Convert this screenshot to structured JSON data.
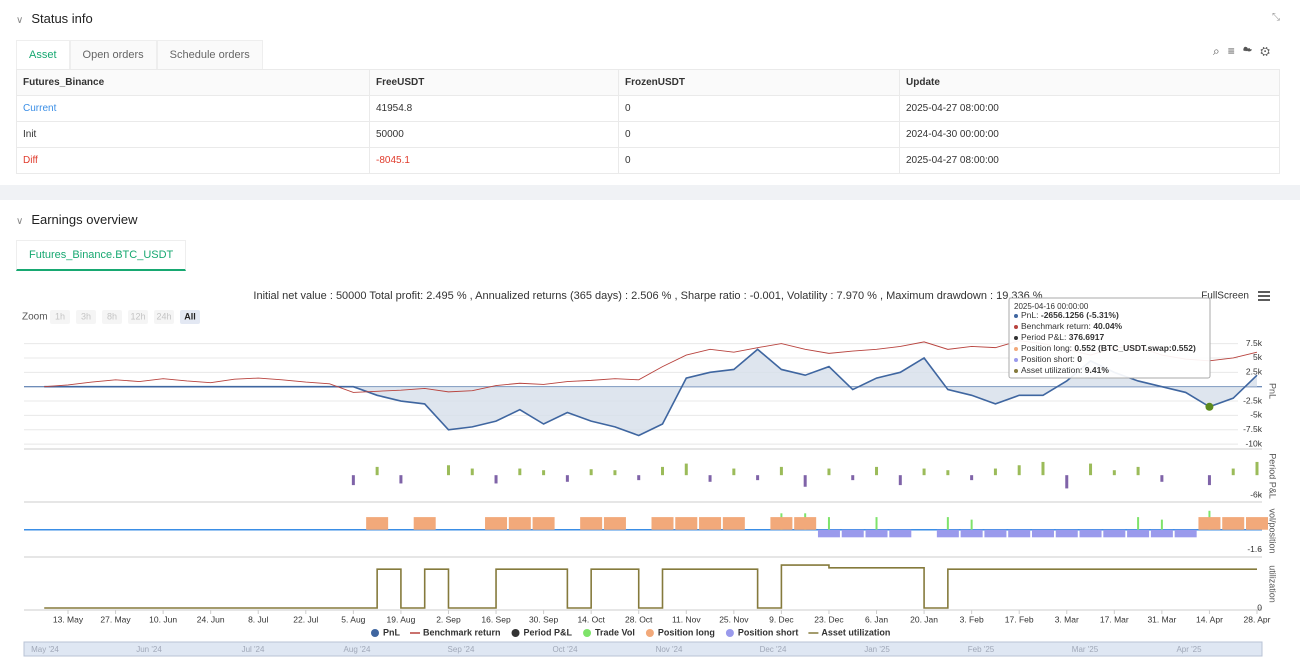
{
  "status": {
    "title": "Status info",
    "tabs": [
      "Asset",
      "Open orders",
      "Schedule orders"
    ],
    "table": {
      "columns": [
        "Futures_Binance",
        "FreeUSDT",
        "FrozenUSDT",
        "Update"
      ],
      "rows": [
        [
          "Current",
          "41954.8",
          "0",
          "2025-04-27 08:00:00"
        ],
        [
          "Init",
          "50000",
          "0",
          "2024-04-30 00:00:00"
        ],
        [
          "Diff",
          "-8045.1",
          "0",
          "2025-04-27 08:00:00"
        ]
      ]
    }
  },
  "earnings": {
    "title": "Earnings overview",
    "tab": "Futures_Binance.BTC_USDT",
    "summary": "Initial net value : 50000 Total profit: 2.495 % , Annualized returns (365 days) : 2.506 % , Sharpe ratio : -0.001, Volatility : 7.970 % , Maximum drawdown : 19.336 %",
    "zoom_label": "Zoom",
    "zoom_buttons": [
      "1h",
      "3h",
      "8h",
      "12h",
      "24h",
      "All"
    ],
    "fullscreen": "FullScreen",
    "tooltip": {
      "date": "2025-04-16 00:00:00",
      "items": [
        {
          "label": "PnL: ",
          "value": "-2656.1256 (-5.31%)"
        },
        {
          "label": "Benchmark return: ",
          "value": "40.04%"
        },
        {
          "label": "Period P&L: ",
          "value": "376.6917"
        },
        {
          "label": "Position long: ",
          "value": "0.552 (BTC_USDT.swap:0.552)"
        },
        {
          "label": "Position short: ",
          "value": "0"
        },
        {
          "label": "Asset utilization: ",
          "value": "9.41%"
        }
      ]
    },
    "navigator": [
      "May '24",
      "Jun '24",
      "Jul '24",
      "Aug '24",
      "Sep '24",
      "Oct '24",
      "Nov '24",
      "Dec '24",
      "Jan '25",
      "Feb '25",
      "Mar '25",
      "Apr '25"
    ]
  },
  "chart_data": [
    {
      "type": "line",
      "ylabel": "PnL",
      "ylim": [
        -10500,
        9000
      ],
      "grid": true,
      "yticks": [
        {
          "value": -10000,
          "label": "-10k"
        },
        {
          "value": -7500,
          "label": "-7.5k"
        },
        {
          "value": -5000,
          "label": "-5k"
        },
        {
          "value": -2500,
          "label": "-2.5k"
        },
        {
          "value": 2500,
          "label": "2.5k"
        },
        {
          "value": 5000,
          "label": "5k"
        },
        {
          "value": 7500,
          "label": "7.5k"
        }
      ],
      "series": [
        {
          "name": "PnL",
          "color": "#3f66a0",
          "fill": "#d6deea",
          "values": [
            0,
            0,
            0,
            0,
            0,
            0,
            0,
            0,
            0,
            0,
            0,
            0,
            0,
            0,
            -1500,
            -2500,
            -3000,
            -7500,
            -7000,
            -6000,
            -4000,
            -6500,
            -4500,
            -6000,
            -7000,
            -8500,
            -6500,
            1500,
            2500,
            3000,
            6500,
            3000,
            2000,
            3500,
            -500,
            1500,
            2500,
            5000,
            -500,
            -1500,
            -3000,
            -1500,
            -1500,
            1000,
            4500,
            2500,
            1000,
            0,
            -1000,
            -3500,
            -2000,
            2000
          ]
        },
        {
          "name": "Benchmark return",
          "color": "#b8433e",
          "values": [
            0,
            300,
            800,
            1200,
            900,
            1400,
            1000,
            700,
            1300,
            1500,
            1200,
            800,
            500,
            -1000,
            -800,
            -600,
            -300,
            -900,
            -700,
            200,
            600,
            400,
            900,
            1100,
            1400,
            1200,
            3500,
            5500,
            6500,
            6000,
            6800,
            7500,
            6500,
            5800,
            6200,
            6500,
            7000,
            7800,
            6500,
            7000,
            6800,
            8000,
            7500,
            6500,
            5500,
            6800,
            7000,
            5500,
            4800,
            4500,
            5000,
            6000
          ]
        }
      ]
    },
    {
      "type": "bar",
      "ylabel": "Period P&L",
      "ylim": [
        -7500,
        7000
      ],
      "yticks": [
        {
          "value": -6000,
          "label": "-6k"
        }
      ],
      "series": [
        {
          "name": "Period P&L",
          "color": "#333333",
          "positive_color": "#9bbb59",
          "negative_color": "#7f63a8",
          "values": [
            0,
            0,
            0,
            0,
            0,
            0,
            0,
            0,
            0,
            0,
            0,
            0,
            0,
            -3000,
            2500,
            -2500,
            0,
            3000,
            2000,
            -2500,
            2000,
            1500,
            -2000,
            1800,
            1500,
            -1500,
            2500,
            3500,
            -2000,
            2000,
            -1500,
            2500,
            -3500,
            2000,
            -1500,
            2500,
            -3000,
            2000,
            1500,
            -1500,
            2000,
            3000,
            4000,
            -4000,
            3500,
            1500,
            2500,
            -2000,
            0,
            -3000,
            2000,
            4000
          ]
        }
      ]
    },
    {
      "type": "bar",
      "ylabel": "vol/position",
      "ylim": [
        -2,
        1.8
      ],
      "yticks": [
        -1.6
      ],
      "series": [
        {
          "name": "Trade Vol",
          "color": "#7ee36a",
          "values": [
            0,
            0,
            0,
            0,
            0,
            0,
            0,
            0,
            0,
            0,
            0,
            0,
            0,
            0,
            0,
            0,
            0,
            0,
            0,
            0,
            0,
            0,
            0,
            0,
            0,
            0,
            0,
            0,
            0,
            0,
            0,
            1.3,
            1.3,
            1.0,
            0,
            1.0,
            0,
            0,
            1.0,
            0.8,
            0,
            0,
            0,
            0,
            0,
            0,
            1.0,
            0.8,
            0,
            1.5,
            0,
            0
          ]
        },
        {
          "name": "Position long",
          "color": "#f2a97a",
          "values": [
            0,
            0,
            0,
            0,
            0,
            0,
            0,
            0,
            0,
            0,
            0,
            0,
            0,
            0,
            1,
            0,
            1,
            0,
            0,
            1,
            1,
            1,
            0,
            1,
            1,
            0,
            1,
            1,
            1,
            1,
            0,
            1,
            1,
            0,
            0,
            0,
            0,
            0,
            0,
            0,
            0,
            0,
            0,
            0,
            0,
            0,
            0,
            0,
            0,
            1,
            1,
            1
          ]
        },
        {
          "name": "Position short",
          "color": "#9a9aec",
          "values": [
            0,
            0,
            0,
            0,
            0,
            0,
            0,
            0,
            0,
            0,
            0,
            0,
            0,
            0,
            0,
            0,
            0,
            0,
            0,
            0,
            0,
            0,
            0,
            0,
            0,
            0,
            0,
            0,
            0,
            0,
            0,
            0,
            0,
            -0.6,
            -0.6,
            -0.6,
            -0.6,
            0,
            -0.6,
            -0.6,
            -0.6,
            -0.6,
            -0.6,
            -0.6,
            -0.6,
            -0.6,
            -0.6,
            -0.6,
            -0.6,
            0,
            0,
            0
          ]
        }
      ]
    },
    {
      "type": "line",
      "ylabel": "utilization",
      "ylim": [
        0,
        10.5
      ],
      "yticks": [
        0
      ],
      "step": true,
      "categories": [
        null,
        "13. May",
        null,
        "27. May",
        null,
        "10. Jun",
        null,
        "24. Jun",
        null,
        "8. Jul",
        null,
        "22. Jul",
        null,
        "5. Aug",
        null,
        "19. Aug",
        null,
        "2. Sep",
        null,
        "16. Sep",
        null,
        "30. Sep",
        null,
        "14. Oct",
        null,
        "28. Oct",
        null,
        "11. Nov",
        null,
        "25. Nov",
        null,
        "9. Dec",
        null,
        "23. Dec",
        null,
        "6. Jan",
        null,
        "20. Jan",
        null,
        "3. Feb",
        null,
        "17. Feb",
        null,
        "3. Mar",
        null,
        "17. Mar",
        null,
        "31. Mar",
        null,
        "14. Apr",
        null,
        "28. Apr"
      ],
      "series": [
        {
          "name": "Asset utilization",
          "color": "#857a3c",
          "values": [
            0,
            0,
            0,
            0,
            0,
            0,
            0,
            0,
            0,
            0,
            0,
            0,
            0,
            0,
            8.5,
            0,
            8.5,
            0,
            0,
            8.5,
            8.5,
            8.5,
            0,
            8.5,
            8.5,
            0,
            8.5,
            8.5,
            8.5,
            8.5,
            0,
            9.4,
            9.4,
            8.8,
            8.8,
            8.8,
            8.8,
            0,
            8.5,
            8.5,
            8.5,
            8.5,
            8.5,
            8.5,
            8.5,
            8.5,
            8.5,
            8.5,
            8.5,
            8.5,
            8.5,
            8.5
          ]
        }
      ]
    }
  ]
}
